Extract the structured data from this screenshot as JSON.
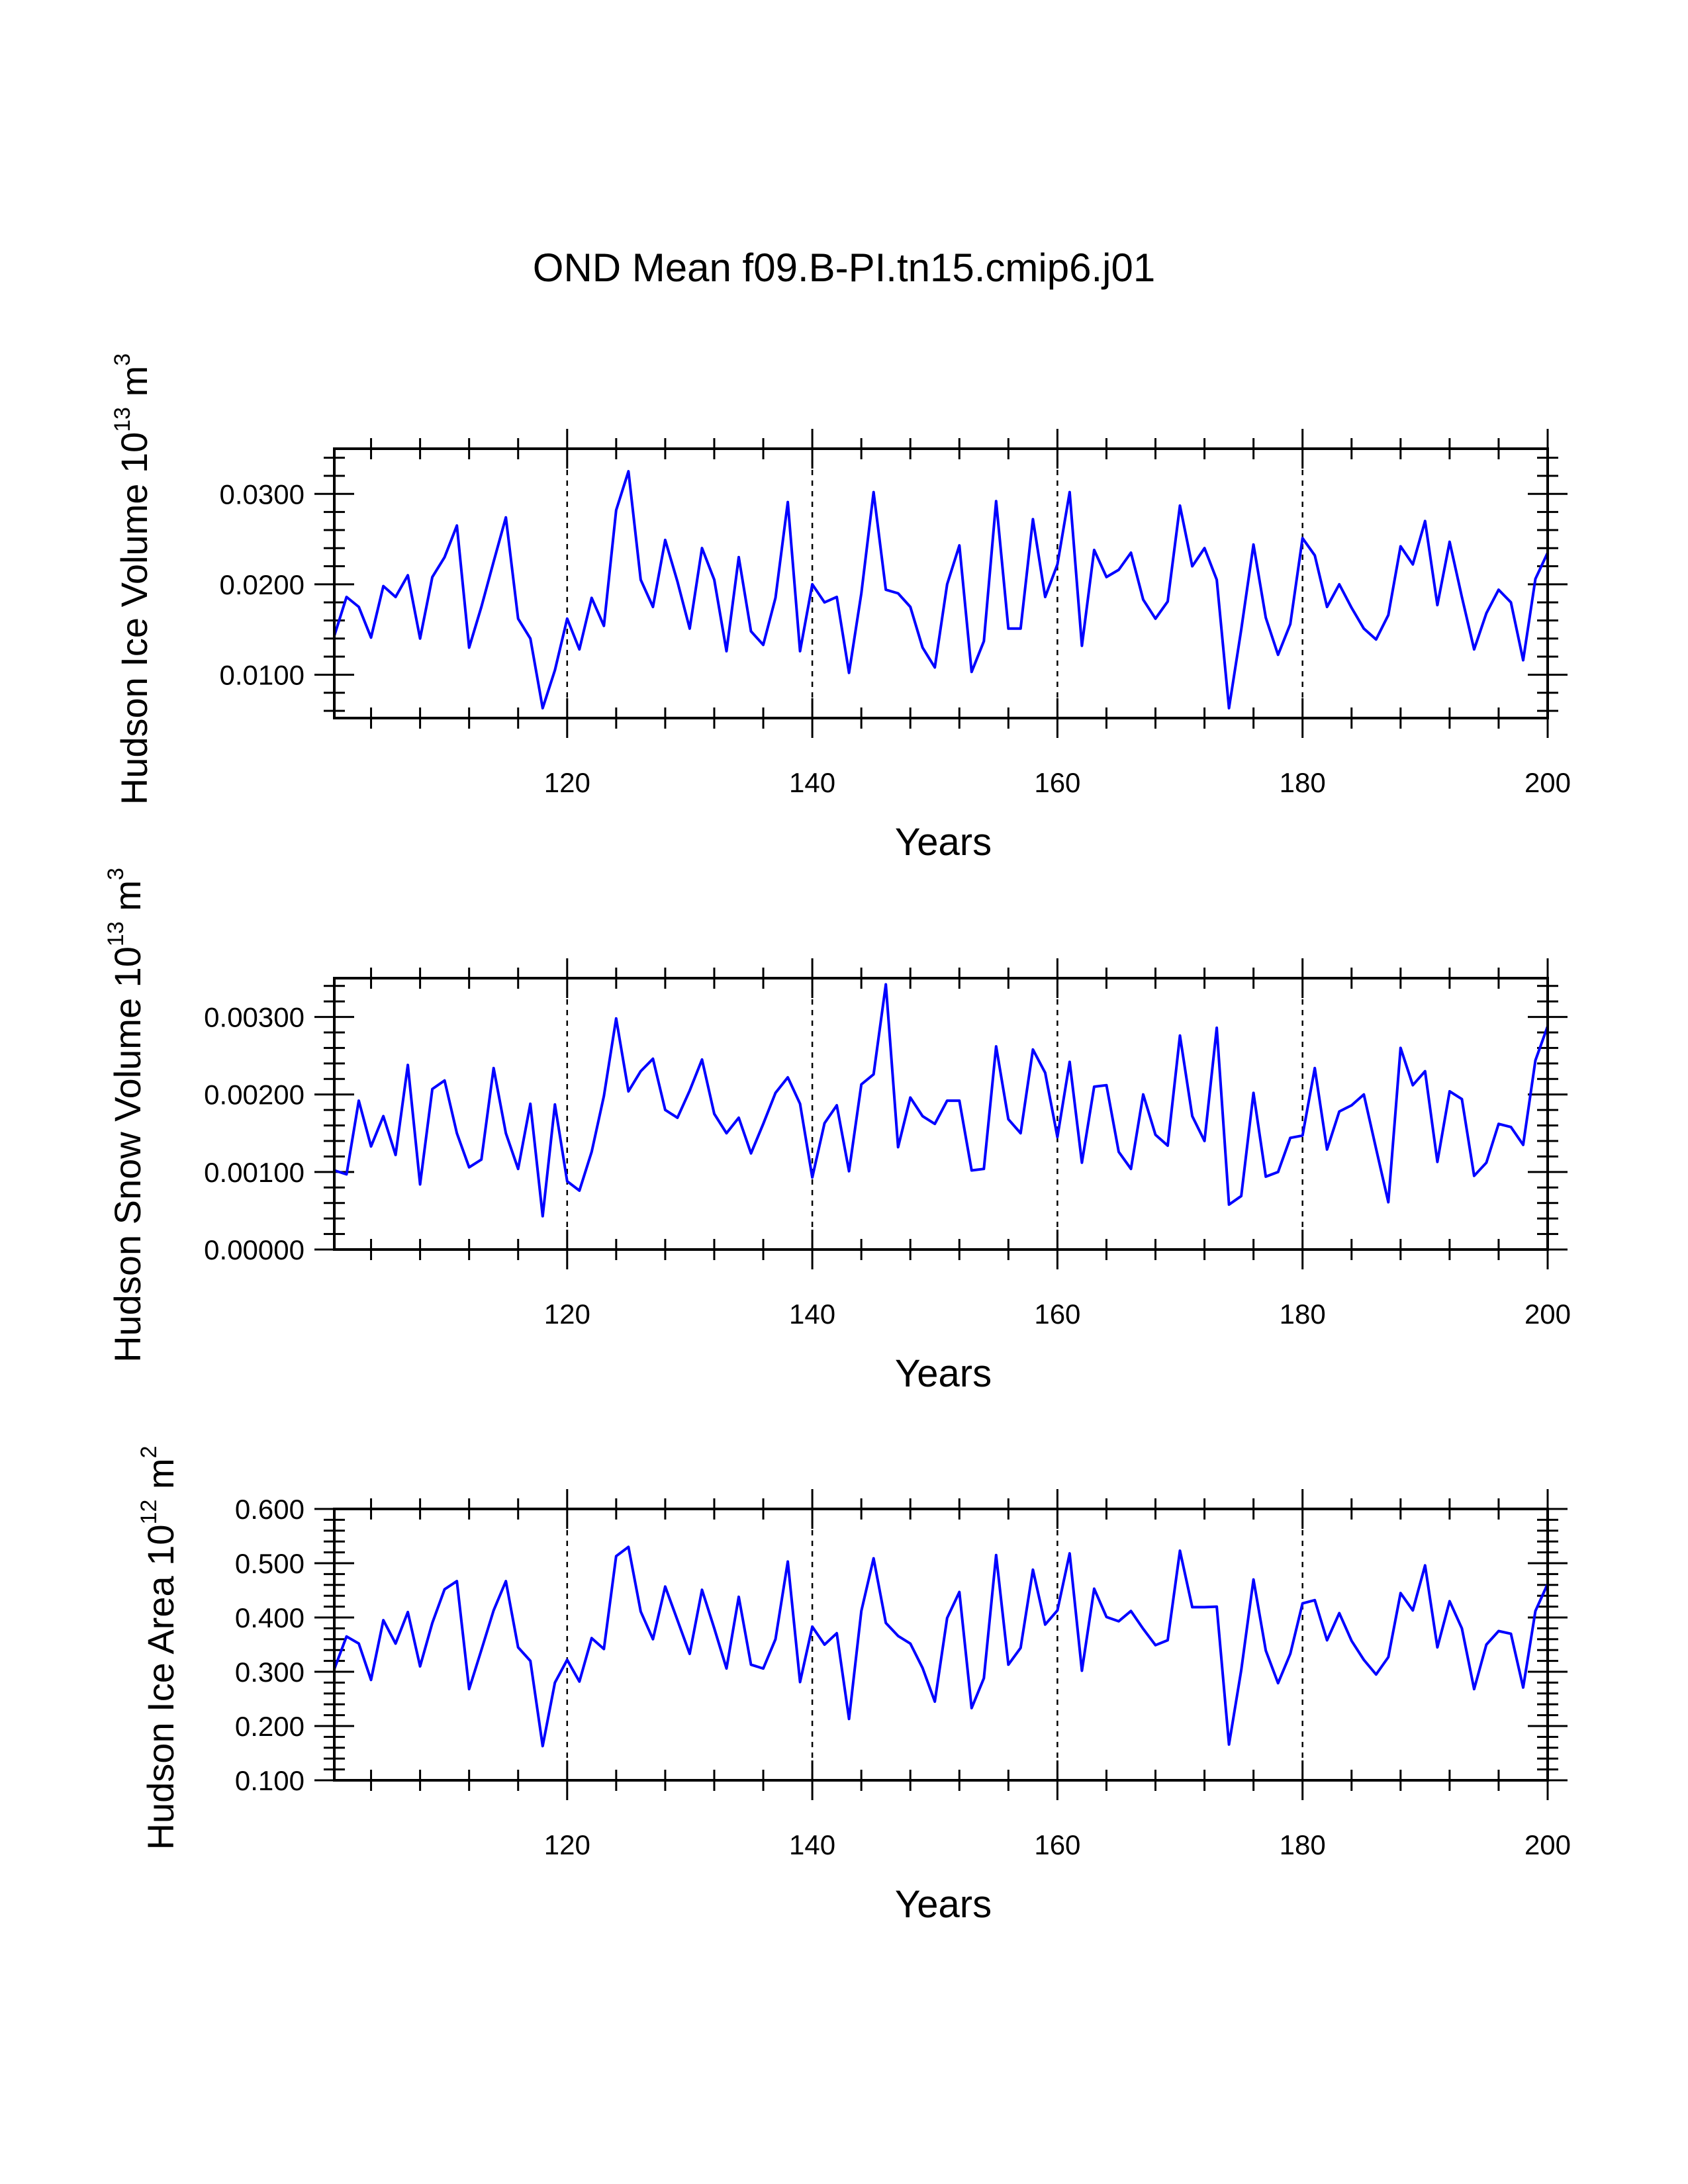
{
  "figure": {
    "title": "OND Mean f09.B-PI.tn15.cmip6.j01",
    "series_color": "#0000ff"
  },
  "chart_data": [
    {
      "type": "line",
      "title": "OND Mean f09.B-PI.tn15.cmip6.j01",
      "xlabel": "Years",
      "ylabel_text": "Hudson Ice Volume 10",
      "ylabel_exp": "13",
      "ylabel_unit": " m",
      "ylabel_unit_exp": "3",
      "xlim": [
        101,
        200
      ],
      "ylim": [
        0.0052,
        0.035
      ],
      "xticks": [
        120,
        140,
        160,
        180,
        200
      ],
      "xtick_labels": [
        "120",
        "140",
        "160",
        "180",
        "200"
      ],
      "yticks": [
        0.01,
        0.02,
        0.03
      ],
      "ytick_labels": [
        "0.0100",
        "0.0200",
        "0.0300"
      ],
      "grid_x": [
        120,
        140,
        160,
        180
      ],
      "x_start": 101,
      "values": [
        0.0143,
        0.0186,
        0.0175,
        0.0141,
        0.0198,
        0.0186,
        0.021,
        0.014,
        0.0208,
        0.023,
        0.0265,
        0.013,
        0.0175,
        0.0225,
        0.0274,
        0.0162,
        0.014,
        0.0063,
        0.0105,
        0.0162,
        0.0128,
        0.0185,
        0.0154,
        0.0282,
        0.0325,
        0.0205,
        0.0175,
        0.0249,
        0.0203,
        0.0151,
        0.024,
        0.0205,
        0.0126,
        0.023,
        0.0148,
        0.0133,
        0.0185,
        0.0291,
        0.0126,
        0.02,
        0.018,
        0.0186,
        0.0102,
        0.019,
        0.0302,
        0.0194,
        0.019,
        0.0175,
        0.013,
        0.0108,
        0.02,
        0.0243,
        0.0103,
        0.0137,
        0.0292,
        0.0151,
        0.0151,
        0.0272,
        0.0186,
        0.0222,
        0.0302,
        0.0132,
        0.0238,
        0.0208,
        0.0216,
        0.0235,
        0.0183,
        0.0162,
        0.0181,
        0.0287,
        0.022,
        0.024,
        0.0205,
        0.0063,
        0.015,
        0.0244,
        0.0163,
        0.0122,
        0.0156,
        0.0251,
        0.0232,
        0.0175,
        0.02,
        0.0174,
        0.0151,
        0.0139,
        0.0166,
        0.0242,
        0.0222,
        0.027,
        0.0177,
        0.0247,
        0.0186,
        0.0128,
        0.0168,
        0.0194,
        0.018,
        0.0116,
        0.0206,
        0.0235
      ]
    },
    {
      "type": "line",
      "xlabel": "Years",
      "ylabel_text": "Hudson Snow Volume 10",
      "ylabel_exp": "13",
      "ylabel_unit": " m",
      "ylabel_unit_exp": "3",
      "xlim": [
        101,
        200
      ],
      "ylim": [
        0.0,
        0.0035
      ],
      "xticks": [
        120,
        140,
        160,
        180,
        200
      ],
      "xtick_labels": [
        "120",
        "140",
        "160",
        "180",
        "200"
      ],
      "yticks": [
        0.0,
        0.001,
        0.002,
        0.003
      ],
      "ytick_labels": [
        "0.00000",
        "0.00100",
        "0.00200",
        "0.00300"
      ],
      "grid_x": [
        120,
        140,
        160,
        180
      ],
      "x_start": 101,
      "values": [
        0.00102,
        0.00097,
        0.00192,
        0.00133,
        0.00172,
        0.00122,
        0.00238,
        0.00084,
        0.00207,
        0.00218,
        0.0015,
        0.00106,
        0.00116,
        0.00234,
        0.0015,
        0.00104,
        0.00188,
        0.00043,
        0.00187,
        0.00088,
        0.00076,
        0.00126,
        0.00198,
        0.00298,
        0.00204,
        0.0023,
        0.00246,
        0.0018,
        0.0017,
        0.00205,
        0.00245,
        0.00175,
        0.0015,
        0.0017,
        0.00124,
        0.00162,
        0.00202,
        0.00222,
        0.00188,
        0.00093,
        0.00163,
        0.00186,
        0.00101,
        0.00213,
        0.00226,
        0.00342,
        0.00132,
        0.00196,
        0.00172,
        0.00162,
        0.00192,
        0.00192,
        0.00102,
        0.00104,
        0.00262,
        0.00168,
        0.0015,
        0.00258,
        0.00228,
        0.00145,
        0.00242,
        0.00112,
        0.0021,
        0.00212,
        0.00126,
        0.00104,
        0.002,
        0.00148,
        0.00134,
        0.00276,
        0.00172,
        0.0014,
        0.00286,
        0.00058,
        0.00069,
        0.00202,
        0.00094,
        0.001,
        0.00144,
        0.00147,
        0.00234,
        0.00129,
        0.00178,
        0.00186,
        0.002,
        0.0013,
        0.00061,
        0.0026,
        0.00212,
        0.0023,
        0.00113,
        0.00204,
        0.00194,
        0.00095,
        0.00112,
        0.00162,
        0.00158,
        0.00135,
        0.00244,
        0.00288
      ]
    },
    {
      "type": "line",
      "xlabel": "Years",
      "ylabel_text": "Hudson Ice Area 10",
      "ylabel_exp": "12",
      "ylabel_unit": " m",
      "ylabel_unit_exp": "2",
      "xlim": [
        101,
        200
      ],
      "ylim": [
        0.1,
        0.6
      ],
      "xticks": [
        120,
        140,
        160,
        180,
        200
      ],
      "xtick_labels": [
        "120",
        "140",
        "160",
        "180",
        "200"
      ],
      "yticks": [
        0.1,
        0.2,
        0.3,
        0.4,
        0.5,
        0.6
      ],
      "ytick_labels": [
        "0.100",
        "0.200",
        "0.300",
        "0.400",
        "0.500",
        "0.600"
      ],
      "grid_x": [
        120,
        140,
        160,
        180
      ],
      "x_start": 101,
      "values": [
        0.305,
        0.365,
        0.352,
        0.285,
        0.395,
        0.352,
        0.41,
        0.31,
        0.39,
        0.452,
        0.467,
        0.268,
        0.34,
        0.413,
        0.467,
        0.345,
        0.32,
        0.163,
        0.28,
        0.322,
        0.282,
        0.362,
        0.342,
        0.513,
        0.53,
        0.411,
        0.36,
        0.457,
        0.395,
        0.333,
        0.451,
        0.38,
        0.306,
        0.438,
        0.313,
        0.306,
        0.36,
        0.503,
        0.281,
        0.383,
        0.35,
        0.371,
        0.213,
        0.412,
        0.509,
        0.39,
        0.366,
        0.352,
        0.307,
        0.245,
        0.399,
        0.447,
        0.233,
        0.288,
        0.515,
        0.313,
        0.344,
        0.488,
        0.387,
        0.413,
        0.518,
        0.302,
        0.453,
        0.401,
        0.393,
        0.412,
        0.379,
        0.349,
        0.358,
        0.523,
        0.419,
        0.419,
        0.42,
        0.166,
        0.303,
        0.47,
        0.339,
        0.279,
        0.333,
        0.426,
        0.432,
        0.358,
        0.408,
        0.357,
        0.322,
        0.295,
        0.327,
        0.445,
        0.413,
        0.496,
        0.345,
        0.43,
        0.38,
        0.268,
        0.35,
        0.375,
        0.37,
        0.271,
        0.412,
        0.462
      ]
    }
  ]
}
